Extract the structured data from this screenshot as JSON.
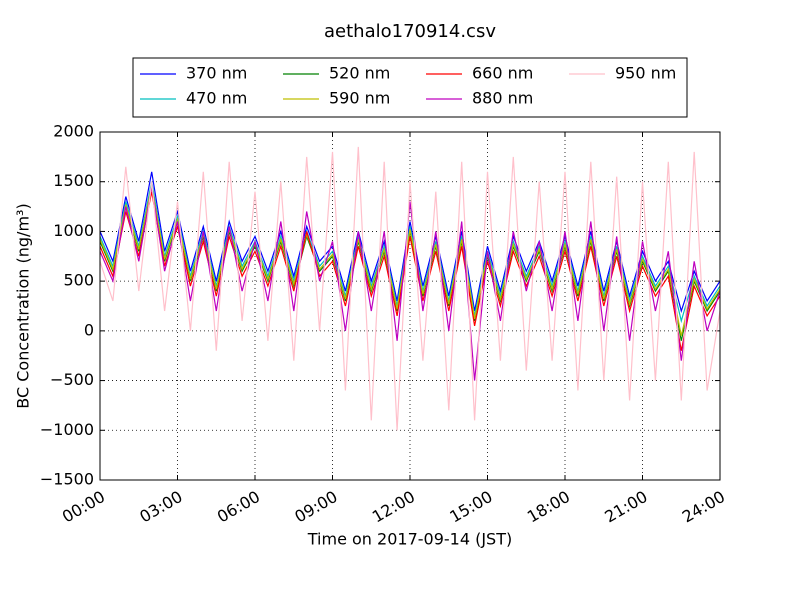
{
  "chart_data": {
    "type": "line",
    "title": "aethalo170914.csv",
    "xlabel": "Time on 2017-09-14 (JST)",
    "ylabel": "BC Concentration (ng/m³)",
    "x": [
      0,
      0.5,
      1,
      1.5,
      2,
      2.5,
      3,
      3.5,
      4,
      4.5,
      5,
      5.5,
      6,
      6.5,
      7,
      7.5,
      8,
      8.5,
      9,
      9.5,
      10,
      10.5,
      11,
      11.5,
      12,
      12.5,
      13,
      13.5,
      14,
      14.5,
      15,
      15.5,
      16,
      16.5,
      17,
      17.5,
      18,
      18.5,
      19,
      19.5,
      20,
      20.5,
      21,
      21.5,
      22,
      22.5,
      23,
      23.5,
      24
    ],
    "xlim": [
      0,
      24
    ],
    "xticks": [
      {
        "value": 0,
        "label": "00:00"
      },
      {
        "value": 3,
        "label": "03:00"
      },
      {
        "value": 6,
        "label": "06:00"
      },
      {
        "value": 9,
        "label": "09:00"
      },
      {
        "value": 12,
        "label": "12:00"
      },
      {
        "value": 15,
        "label": "15:00"
      },
      {
        "value": 18,
        "label": "18:00"
      },
      {
        "value": 21,
        "label": "21:00"
      },
      {
        "value": 24,
        "label": "24:00"
      }
    ],
    "ylim": [
      -1500,
      2000
    ],
    "yticks": [
      {
        "value": -1500,
        "label": "−1500"
      },
      {
        "value": -1000,
        "label": "−1000"
      },
      {
        "value": -500,
        "label": "−500"
      },
      0,
      500,
      1000,
      1500,
      2000
    ],
    "grid": true,
    "legend": "top",
    "series": [
      {
        "name": "370 nm",
        "color": "#0000ff",
        "values": [
          1000,
          700,
          1350,
          900,
          1600,
          800,
          1200,
          600,
          1050,
          500,
          1100,
          700,
          950,
          600,
          1000,
          550,
          1050,
          700,
          850,
          400,
          1000,
          500,
          900,
          300,
          1100,
          450,
          950,
          350,
          1000,
          200,
          850,
          400,
          950,
          600,
          900,
          500,
          950,
          450,
          1000,
          400,
          900,
          350,
          800,
          500,
          700,
          200,
          600,
          300,
          500
        ]
      },
      {
        "name": "470 nm",
        "color": "#00bfbf",
        "values": [
          950,
          650,
          1300,
          850,
          1500,
          750,
          1150,
          550,
          1000,
          450,
          1050,
          650,
          900,
          550,
          950,
          500,
          1000,
          650,
          800,
          350,
          950,
          450,
          850,
          250,
          1050,
          400,
          900,
          300,
          950,
          150,
          800,
          350,
          900,
          550,
          850,
          450,
          900,
          400,
          950,
          350,
          850,
          300,
          750,
          450,
          650,
          100,
          550,
          250,
          450
        ]
      },
      {
        "name": "520 nm",
        "color": "#008000",
        "values": [
          900,
          600,
          1250,
          800,
          1450,
          700,
          1100,
          500,
          950,
          400,
          1000,
          600,
          850,
          500,
          900,
          450,
          950,
          600,
          750,
          300,
          900,
          400,
          800,
          200,
          1000,
          350,
          850,
          250,
          900,
          100,
          750,
          300,
          850,
          500,
          800,
          400,
          850,
          350,
          900,
          300,
          800,
          250,
          700,
          400,
          600,
          -100,
          500,
          200,
          400
        ]
      },
      {
        "name": "590 nm",
        "color": "#bfbf00",
        "values": [
          920,
          620,
          1270,
          820,
          1460,
          720,
          1120,
          520,
          970,
          420,
          1020,
          620,
          870,
          520,
          920,
          470,
          970,
          620,
          770,
          320,
          920,
          420,
          820,
          220,
          1020,
          370,
          870,
          270,
          920,
          120,
          770,
          320,
          870,
          520,
          820,
          420,
          870,
          370,
          920,
          320,
          820,
          270,
          720,
          420,
          620,
          -50,
          520,
          220,
          420
        ]
      },
      {
        "name": "660 nm",
        "color": "#ff0000",
        "values": [
          850,
          550,
          1200,
          750,
          1400,
          650,
          1050,
          450,
          900,
          350,
          950,
          550,
          800,
          450,
          850,
          400,
          1000,
          550,
          700,
          250,
          850,
          350,
          750,
          150,
          950,
          300,
          800,
          200,
          850,
          50,
          700,
          250,
          800,
          450,
          750,
          350,
          800,
          300,
          850,
          250,
          750,
          200,
          650,
          350,
          550,
          -200,
          450,
          150,
          350
        ]
      },
      {
        "name": "880 nm",
        "color": "#bf00bf",
        "values": [
          800,
          500,
          1250,
          700,
          1450,
          600,
          1100,
          300,
          1000,
          200,
          1050,
          400,
          900,
          300,
          1100,
          200,
          1200,
          500,
          900,
          0,
          1000,
          200,
          1000,
          -100,
          1300,
          200,
          1000,
          0,
          1100,
          -500,
          800,
          100,
          1000,
          400,
          900,
          200,
          1000,
          100,
          1100,
          0,
          950,
          -100,
          900,
          200,
          800,
          -300,
          700,
          0,
          400
        ]
      },
      {
        "name": "950 nm",
        "color": "#ffc0cb",
        "values": [
          700,
          300,
          1650,
          400,
          1500,
          200,
          1300,
          0,
          1600,
          -200,
          1700,
          100,
          1400,
          -100,
          1500,
          -300,
          1750,
          0,
          1800,
          -600,
          1850,
          -900,
          1700,
          -1000,
          1500,
          -300,
          1400,
          -800,
          1700,
          -900,
          1600,
          -300,
          1750,
          -400,
          1500,
          -300,
          1600,
          -600,
          1700,
          -500,
          1550,
          -700,
          1500,
          -500,
          1700,
          -700,
          1800,
          -600,
          200
        ]
      }
    ]
  }
}
